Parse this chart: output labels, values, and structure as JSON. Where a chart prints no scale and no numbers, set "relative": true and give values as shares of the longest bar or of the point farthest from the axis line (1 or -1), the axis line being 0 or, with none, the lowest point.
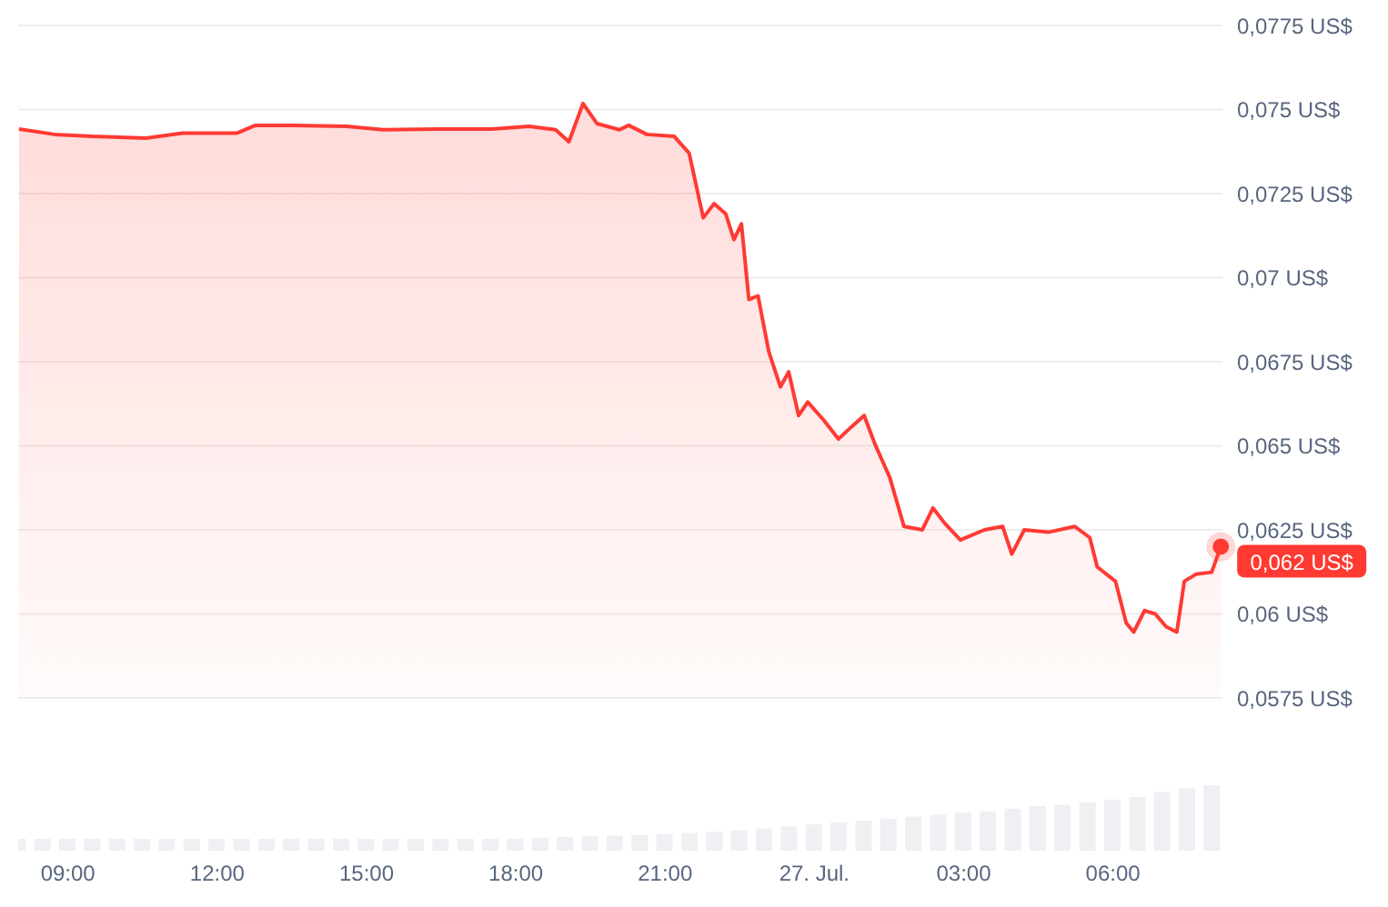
{
  "chart_data": [
    {
      "type": "area",
      "x": [
        "--07-26T08:01",
        "--07-26T08:44",
        "--07-26T09:29",
        "--07-26T10:34",
        "--07-26T11:18",
        "--07-26T12:24",
        "--07-26T12:46",
        "--07-26T13:30",
        "--07-26T14:36",
        "--07-26T15:20",
        "--07-26T16:26",
        "--07-26T17:31",
        "--07-26T18:16",
        "--07-26T18:48",
        "--07-26T19:04",
        "--07-26T19:21",
        "--07-26T19:38",
        "--07-26T20:05",
        "--07-26T20:16",
        "--07-26T20:38",
        "--07-26T21:11",
        "--07-26T21:29",
        "--07-26T21:46",
        "--07-26T21:59",
        "--07-26T22:13",
        "--07-26T22:23",
        "--07-26T22:32",
        "--07-26T22:41",
        "--07-26T22:52",
        "--07-26T23:05",
        "--07-26T23:19",
        "--07-26T23:29",
        "--07-26T23:41",
        "--07-26T23:52",
        "--07-27T00:11",
        "--07-27T00:29",
        "--07-27T00:44",
        "--07-27T01:00",
        "--07-27T01:13",
        "--07-27T01:31",
        "--07-27T01:48",
        "--07-27T02:10",
        "--07-27T02:23",
        "--07-27T02:37",
        "--07-27T02:56",
        "--07-27T03:25",
        "--07-27T03:47",
        "--07-27T03:58",
        "--07-27T04:13",
        "--07-27T04:42",
        "--07-27T05:14",
        "--07-27T05:32",
        "--07-27T05:41",
        "--07-27T06:03",
        "--07-27T06:16",
        "--07-27T06:25",
        "--07-27T06:38",
        "--07-27T06:51",
        "--07-27T07:04",
        "--07-27T07:17",
        "--07-27T07:26",
        "--07-27T07:40",
        "--07-27T07:59",
        "--07-27T08:10"
      ],
      "series": [
        {
          "color": "#ff3a33",
          "values": [
            0.07442,
            0.07426,
            0.0742,
            0.07415,
            0.0743,
            0.0743,
            0.07453,
            0.07453,
            0.0745,
            0.0744,
            0.07442,
            0.07442,
            0.0745,
            0.0744,
            0.07404,
            0.07518,
            0.07458,
            0.0744,
            0.07453,
            0.07426,
            0.0742,
            0.0737,
            0.07178,
            0.0722,
            0.0719,
            0.07113,
            0.0716,
            0.06935,
            0.06946,
            0.0678,
            0.06675,
            0.0672,
            0.0659,
            0.0663,
            0.06577,
            0.0652,
            0.06555,
            0.0659,
            0.06505,
            0.06405,
            0.0626,
            0.0625,
            0.06315,
            0.0627,
            0.0622,
            0.0625,
            0.0626,
            0.06178,
            0.0625,
            0.06243,
            0.0626,
            0.06227,
            0.0614,
            0.06097,
            0.05973,
            0.05946,
            0.0601,
            0.06,
            0.05962,
            0.05946,
            0.06097,
            0.06118,
            0.06124,
            0.062
          ],
          "value_labels": [
            null,
            null,
            null,
            null,
            null,
            null,
            null,
            null,
            null,
            null,
            null,
            null,
            null,
            null,
            null,
            null,
            null,
            null,
            null,
            null,
            null,
            null,
            null,
            null,
            null,
            null,
            null,
            null,
            null,
            null,
            null,
            null,
            null,
            null,
            null,
            null,
            null,
            null,
            null,
            null,
            null,
            null,
            null,
            null,
            null,
            null,
            null,
            null,
            null,
            null,
            null,
            null,
            null,
            null,
            null,
            null,
            null,
            null,
            null,
            null,
            null,
            null,
            null,
            "0,062 US$"
          ]
        }
      ],
      "xlim": [
        "--07-26T08:00",
        "--07-27T08:12"
      ],
      "ylim": [
        0.0575,
        0.0775
      ],
      "yticks": [
        {
          "value": 0.0575,
          "label": "0,0575 US$"
        },
        {
          "value": 0.06,
          "label": "0,06 US$"
        },
        {
          "value": 0.0625,
          "label": "0,0625 US$"
        },
        {
          "value": 0.065,
          "label": "0,065 US$"
        },
        {
          "value": 0.0675,
          "label": "0,0675 US$"
        },
        {
          "value": 0.07,
          "label": "0,07 US$"
        },
        {
          "value": 0.0725,
          "label": "0,0725 US$"
        },
        {
          "value": 0.075,
          "label": "0,075 US$"
        },
        {
          "value": 0.0775,
          "label": "0,0775 US$"
        }
      ],
      "grid": "y",
      "tick_labels": "y",
      "marker": "none",
      "line_style": "solid"
    },
    {
      "type": "bar",
      "relative": true,
      "color": "#eef0f3",
      "x": [
        "--07-26T08:00",
        "--07-26T08:30",
        "--07-26T09:00",
        "--07-26T09:30",
        "--07-26T10:00",
        "--07-26T10:30",
        "--07-26T11:00",
        "--07-26T11:30",
        "--07-26T12:00",
        "--07-26T12:30",
        "--07-26T13:00",
        "--07-26T13:30",
        "--07-26T14:00",
        "--07-26T14:30",
        "--07-26T15:00",
        "--07-26T15:30",
        "--07-26T16:00",
        "--07-26T16:30",
        "--07-26T17:00",
        "--07-26T17:30",
        "--07-26T18:00",
        "--07-26T18:30",
        "--07-26T19:00",
        "--07-26T19:30",
        "--07-26T20:00",
        "--07-26T20:30",
        "--07-26T21:00",
        "--07-26T21:30",
        "--07-26T22:00",
        "--07-26T22:30",
        "--07-26T23:00",
        "--07-26T23:30",
        "--07-27T00:00",
        "--07-27T00:30",
        "--07-27T01:00",
        "--07-27T01:30",
        "--07-27T02:00",
        "--07-27T02:30",
        "--07-27T03:00",
        "--07-27T03:30",
        "--07-27T04:00",
        "--07-27T04:30",
        "--07-27T05:00",
        "--07-27T05:30",
        "--07-27T06:00",
        "--07-27T06:30",
        "--07-27T07:00",
        "--07-27T07:30",
        "--07-27T08:00"
      ],
      "values": [
        0.18,
        0.18,
        0.18,
        0.18,
        0.18,
        0.18,
        0.18,
        0.18,
        0.18,
        0.18,
        0.18,
        0.18,
        0.18,
        0.18,
        0.18,
        0.18,
        0.18,
        0.18,
        0.18,
        0.18,
        0.18,
        0.2,
        0.21,
        0.22,
        0.23,
        0.24,
        0.25,
        0.27,
        0.29,
        0.31,
        0.34,
        0.37,
        0.4,
        0.43,
        0.46,
        0.49,
        0.52,
        0.55,
        0.58,
        0.6,
        0.64,
        0.68,
        0.7,
        0.74,
        0.78,
        0.82,
        0.9,
        0.95,
        1
      ],
      "xlim": [
        "--07-26T08:00",
        "--07-27T08:12"
      ],
      "xticks": [
        {
          "value": "--07-26T09:00",
          "label": "09:00"
        },
        {
          "value": "--07-26T12:00",
          "label": "12:00"
        },
        {
          "value": "--07-26T15:00",
          "label": "15:00"
        },
        {
          "value": "--07-26T18:00",
          "label": "18:00"
        },
        {
          "value": "--07-26T21:00",
          "label": "21:00"
        },
        {
          "value": "--07-27T00:00",
          "label": "27. Jul."
        },
        {
          "value": "--07-27T03:00",
          "label": "03:00"
        },
        {
          "value": "--07-27T06:00",
          "label": "06:00"
        }
      ],
      "tick_labels": "x"
    }
  ]
}
